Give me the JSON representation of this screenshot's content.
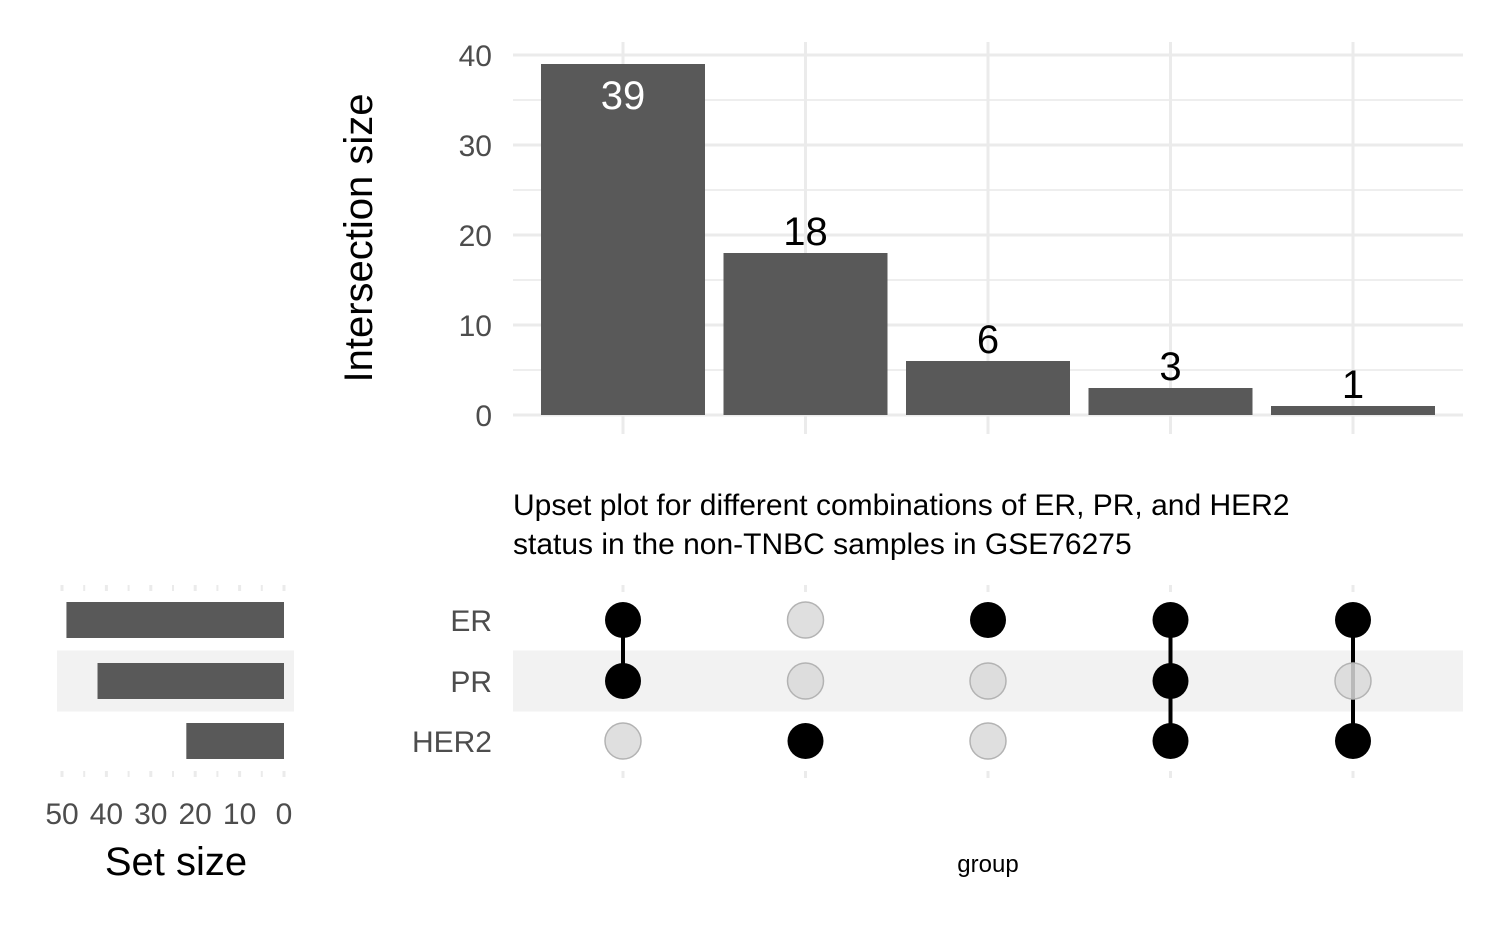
{
  "chart_data": [
    {
      "type": "bar",
      "panel": "intersection-size",
      "categories": [
        "ER & PR",
        "HER2",
        "ER",
        "ER & PR & HER2",
        "ER & HER2"
      ],
      "values": [
        39,
        18,
        6,
        3,
        1
      ],
      "ylabel": "Intersection size",
      "ylim": [
        0,
        40
      ],
      "yticks": [
        0,
        10,
        20,
        30,
        40
      ],
      "grid": true
    },
    {
      "type": "bar",
      "panel": "set-size",
      "orientation": "horizontal-reversed",
      "categories": [
        "ER",
        "PR",
        "HER2"
      ],
      "values": [
        49,
        42,
        22
      ],
      "xlabel": "Set size",
      "xlim": [
        50,
        0
      ],
      "xticks": [
        50,
        40,
        30,
        20,
        10,
        0
      ]
    },
    {
      "type": "table",
      "panel": "intersection-matrix",
      "sets": [
        "ER",
        "PR",
        "HER2"
      ],
      "columns": [
        {
          "ER": true,
          "PR": true,
          "HER2": false
        },
        {
          "ER": false,
          "PR": false,
          "HER2": true
        },
        {
          "ER": true,
          "PR": false,
          "HER2": false
        },
        {
          "ER": true,
          "PR": true,
          "HER2": true
        },
        {
          "ER": true,
          "PR": false,
          "HER2": true
        }
      ],
      "title": "Upset plot for different combinations of ER, PR, and HER2 status in the non-TNBC samples in GSE76275",
      "title_lines": [
        "Upset plot for different combinations of ER, PR, and HER2",
        "status in the non-TNBC samples in GSE76275"
      ],
      "xlabel": "group"
    }
  ],
  "colors": {
    "bar": "#595959",
    "dot_active": "#000000",
    "dot_inactive": "#d9d9d9",
    "dot_inactive_stroke": "#b3b3b3",
    "grid": "#ebebeb",
    "stripe": "#f2f2f2",
    "label_inside": "#ffffff",
    "label_outside": "#000000"
  }
}
